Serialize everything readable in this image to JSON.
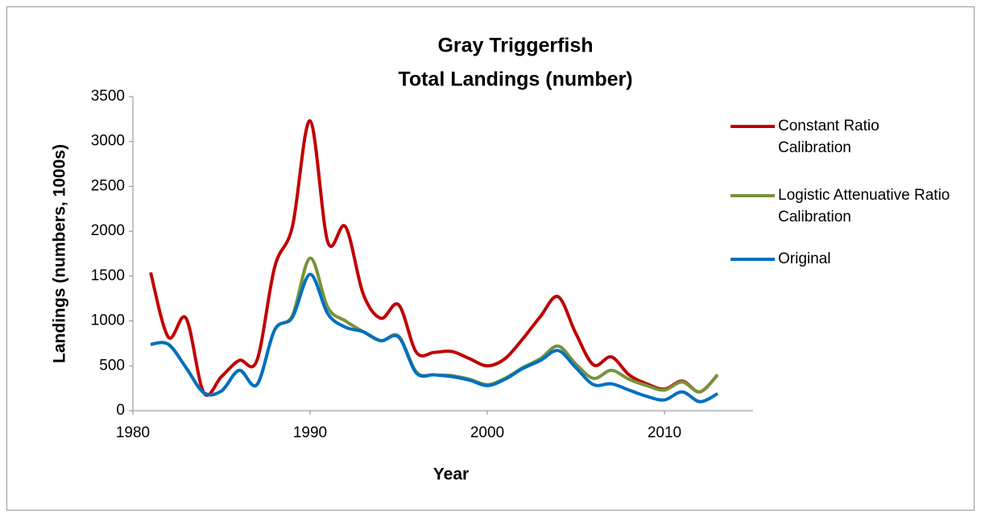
{
  "chart_data": {
    "type": "line",
    "title": "Gray Triggerfish",
    "subtitle": "Total Landings (number)",
    "x_label": "Year",
    "y_label": "Landings (numbers, 1000s)",
    "x": [
      1981,
      1982,
      1983,
      1984,
      1985,
      1986,
      1987,
      1988,
      1989,
      1990,
      1991,
      1992,
      1993,
      1994,
      1995,
      1996,
      1997,
      1998,
      1999,
      2000,
      2001,
      2002,
      2003,
      2004,
      2005,
      2006,
      2007,
      2008,
      2009,
      2010,
      2011,
      2012,
      2013
    ],
    "xlim": [
      1980,
      2015
    ],
    "xticks": [
      1980,
      1990,
      2000,
      2010
    ],
    "ylim": [
      0,
      3500
    ],
    "yticks": [
      0,
      500,
      1000,
      1500,
      2000,
      2500,
      3000,
      3500
    ],
    "grid": false,
    "legend": "right",
    "series": [
      {
        "name": "Constant Ratio Calibration",
        "color": "#c00000",
        "values": [
          1540,
          820,
          1030,
          200,
          380,
          560,
          560,
          1600,
          2050,
          3230,
          1880,
          2050,
          1300,
          1030,
          1180,
          650,
          650,
          660,
          580,
          500,
          580,
          800,
          1050,
          1270,
          860,
          510,
          600,
          400,
          300,
          240,
          330,
          210,
          400
        ]
      },
      {
        "name": "Logistic Attenuative Ratio Calibration",
        "color": "#77933c",
        "values": [
          740,
          740,
          480,
          200,
          220,
          450,
          290,
          900,
          1060,
          1700,
          1150,
          1000,
          880,
          780,
          830,
          430,
          400,
          390,
          350,
          290,
          360,
          480,
          580,
          720,
          520,
          360,
          450,
          350,
          280,
          230,
          320,
          210,
          400
        ]
      },
      {
        "name": "Original",
        "color": "#0070c0",
        "values": [
          740,
          740,
          480,
          200,
          220,
          450,
          290,
          900,
          1040,
          1520,
          1080,
          930,
          880,
          780,
          820,
          420,
          400,
          380,
          340,
          280,
          350,
          470,
          560,
          670,
          480,
          290,
          300,
          230,
          160,
          120,
          210,
          100,
          190
        ]
      }
    ]
  }
}
